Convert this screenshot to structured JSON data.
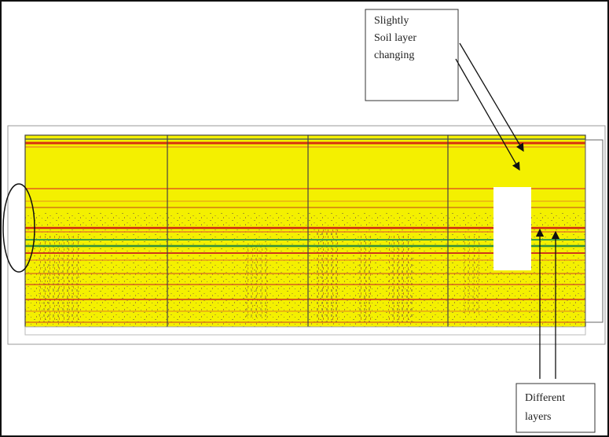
{
  "annotations": [
    {
      "lines": [
        "Slightly",
        "Soil layer",
        "changing"
      ]
    },
    {
      "lines": [
        "Different",
        "layers"
      ]
    }
  ]
}
